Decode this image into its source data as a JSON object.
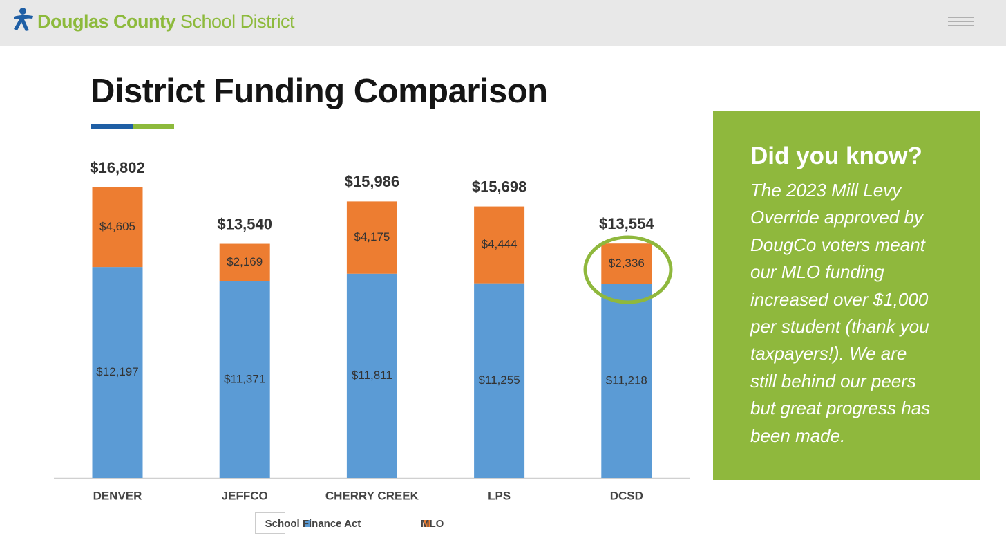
{
  "header": {
    "brand_bold": "Douglas County",
    "brand_light": "School District"
  },
  "heading": "District Funding Comparison",
  "callout": {
    "title": "Did you know?",
    "lines": [
      "The 2023 Mill Levy",
      "Override approved by",
      "DougCo voters meant",
      "our MLO funding",
      "increased over $1,000",
      "per student (thank you",
      "taxpayers!). We are",
      "still behind our peers",
      "but great progress has",
      "been made."
    ]
  },
  "chart_data": {
    "type": "bar",
    "stacked": true,
    "categories": [
      "DENVER",
      "JEFFCO",
      "CHERRY CREEK",
      "LPS",
      "DCSD"
    ],
    "series": [
      {
        "name": "School Finance Act",
        "color": "#5b9bd5",
        "values": [
          12197,
          11371,
          11811,
          11255,
          11218
        ],
        "value_labels": [
          "$12,197",
          "$11,371",
          "$11,811",
          "$11,255",
          "$11,218"
        ]
      },
      {
        "name": "MLO",
        "color": "#ed7d31",
        "values": [
          4605,
          2169,
          4175,
          4444,
          2336
        ],
        "value_labels": [
          "$4,605",
          "$2,169",
          "$4,175",
          "$4,444",
          "$2,336"
        ]
      }
    ],
    "totals": [
      16802,
      13540,
      15986,
      15698,
      13554
    ],
    "total_labels": [
      "$16,802",
      "$13,540",
      "$15,986",
      "$15,698",
      "$13,554"
    ]
  }
}
